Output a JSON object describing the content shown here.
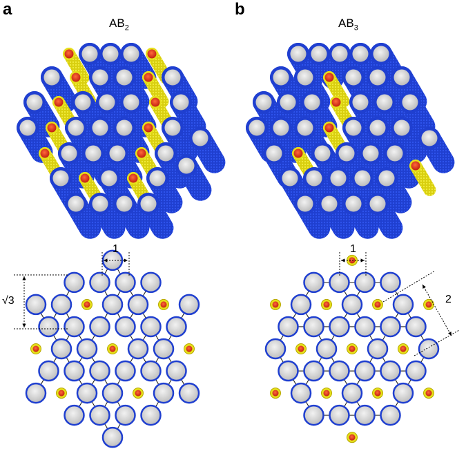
{
  "panels": [
    {
      "letter": "a",
      "title_main": "AB",
      "title_sub": "2"
    },
    {
      "letter": "b",
      "title_main": "AB",
      "title_sub": "3"
    }
  ],
  "annotations": {
    "a_spacing": "1",
    "a_height": "√3",
    "b_spacing": "1",
    "b_distance": "2"
  },
  "colors": {
    "tube_blue": "#1f3fd0",
    "tube_yellow": "#e6e01a",
    "core_red": "#d8321c",
    "core_grey": "#d4d4d4",
    "lattice_line": "#222222"
  }
}
